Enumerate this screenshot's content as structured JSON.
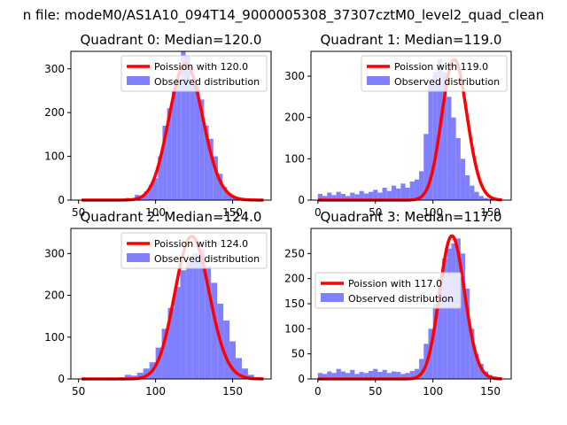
{
  "figure": {
    "suptitle": "n file: modeM0/AS1A10_094T14_9000005308_37307cztM0_level2_quad_clean"
  },
  "chart_data": [
    {
      "type": "histogram",
      "title": "Quadrant 0: Median=120.0",
      "xlim": [
        45,
        175
      ],
      "ylim": [
        0,
        340
      ],
      "xticks": [
        50,
        100,
        150
      ],
      "yticks": [
        0,
        100,
        200,
        300
      ],
      "legend_position": "upper-right",
      "series": [
        {
          "name": "Poission with 120.0",
          "kind": "line",
          "color": "#ff0000",
          "lambda": 120,
          "scale": 311,
          "x_range": [
            52,
            170
          ]
        },
        {
          "name": "Observed distribution",
          "kind": "bars",
          "color": "#8080ff",
          "x": [
            82,
            85,
            88,
            91,
            94,
            97,
            100,
            103,
            106,
            109,
            112,
            115,
            118,
            121,
            124,
            127,
            130,
            133,
            136,
            139,
            142,
            145,
            148,
            151
          ],
          "values": [
            5,
            3,
            12,
            10,
            20,
            35,
            50,
            100,
            170,
            210,
            250,
            270,
            350,
            330,
            270,
            260,
            230,
            170,
            140,
            100,
            60,
            30,
            15,
            8
          ]
        }
      ]
    },
    {
      "type": "histogram",
      "title": "Quadrant 1: Median=119.0",
      "xlim": [
        -6,
        168
      ],
      "ylim": [
        0,
        360
      ],
      "xticks": [
        0,
        50,
        100,
        150
      ],
      "yticks": [
        0,
        100,
        200,
        300
      ],
      "legend_position": "upper-right",
      "series": [
        {
          "name": "Poission with 119.0",
          "kind": "line",
          "color": "#ff0000",
          "lambda": 119,
          "scale": 340,
          "x_range": [
            0,
            160
          ]
        },
        {
          "name": "Observed distribution",
          "kind": "bars",
          "color": "#8080ff",
          "x": [
            2,
            6,
            10,
            14,
            18,
            22,
            26,
            30,
            34,
            38,
            42,
            46,
            50,
            54,
            58,
            62,
            66,
            70,
            74,
            78,
            82,
            86,
            90,
            94,
            98,
            102,
            106,
            110,
            114,
            118,
            122,
            126,
            130,
            134,
            138,
            142,
            146,
            150,
            154
          ],
          "values": [
            15,
            10,
            18,
            12,
            20,
            15,
            10,
            18,
            14,
            22,
            16,
            20,
            25,
            18,
            30,
            22,
            35,
            28,
            40,
            30,
            45,
            50,
            70,
            160,
            280,
            310,
            340,
            310,
            250,
            200,
            150,
            100,
            60,
            35,
            20,
            10,
            5,
            3,
            2
          ]
        }
      ]
    },
    {
      "type": "histogram",
      "title": "Quadrant 2: Median=124.0",
      "xlim": [
        45,
        175
      ],
      "ylim": [
        0,
        360
      ],
      "xticks": [
        50,
        100,
        150
      ],
      "yticks": [
        0,
        100,
        200,
        300
      ],
      "legend_position": "upper-right",
      "series": [
        {
          "name": "Poission with 124.0",
          "kind": "line",
          "color": "#ff0000",
          "lambda": 124,
          "scale": 341,
          "x_range": [
            52,
            170
          ]
        },
        {
          "name": "Observed distribution",
          "kind": "bars",
          "color": "#8080ff",
          "x": [
            74,
            78,
            82,
            86,
            90,
            94,
            98,
            102,
            106,
            110,
            114,
            118,
            122,
            126,
            130,
            134,
            138,
            142,
            146,
            150,
            154,
            158,
            162
          ],
          "values": [
            2,
            4,
            10,
            8,
            15,
            25,
            40,
            75,
            120,
            170,
            220,
            260,
            280,
            300,
            310,
            270,
            230,
            180,
            140,
            90,
            50,
            25,
            10
          ]
        }
      ]
    },
    {
      "type": "histogram",
      "title": "Quadrant 3: Median=117.0",
      "xlim": [
        -6,
        168
      ],
      "ylim": [
        0,
        300
      ],
      "xticks": [
        0,
        50,
        100,
        150
      ],
      "yticks": [
        0,
        50,
        100,
        150,
        200,
        250
      ],
      "legend_position": "center-left",
      "series": [
        {
          "name": "Poission with 117.0",
          "kind": "line",
          "color": "#ff0000",
          "lambda": 117,
          "scale": 285,
          "x_range": [
            0,
            160
          ]
        },
        {
          "name": "Observed distribution",
          "kind": "bars",
          "color": "#8080ff",
          "x": [
            2,
            6,
            10,
            14,
            18,
            22,
            26,
            30,
            34,
            38,
            42,
            46,
            50,
            54,
            58,
            62,
            66,
            70,
            74,
            78,
            82,
            86,
            90,
            94,
            98,
            102,
            106,
            110,
            114,
            118,
            122,
            126,
            130,
            134,
            138,
            142,
            146,
            150,
            154
          ],
          "values": [
            12,
            10,
            15,
            12,
            20,
            15,
            12,
            18,
            10,
            14,
            12,
            16,
            20,
            14,
            18,
            12,
            15,
            14,
            10,
            12,
            16,
            20,
            40,
            70,
            100,
            150,
            200,
            240,
            260,
            270,
            280,
            250,
            180,
            100,
            50,
            30,
            15,
            8,
            5
          ]
        }
      ]
    }
  ]
}
